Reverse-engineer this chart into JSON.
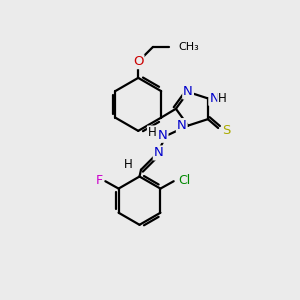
{
  "background_color": "#ebebeb",
  "atom_colors": {
    "C": "#000000",
    "N": "#0000cc",
    "O": "#cc0000",
    "S": "#aaaa00",
    "F": "#cc00cc",
    "Cl": "#008800",
    "H": "#000000"
  },
  "bond_color": "#000000",
  "bond_width": 1.6,
  "font_size": 8.5
}
